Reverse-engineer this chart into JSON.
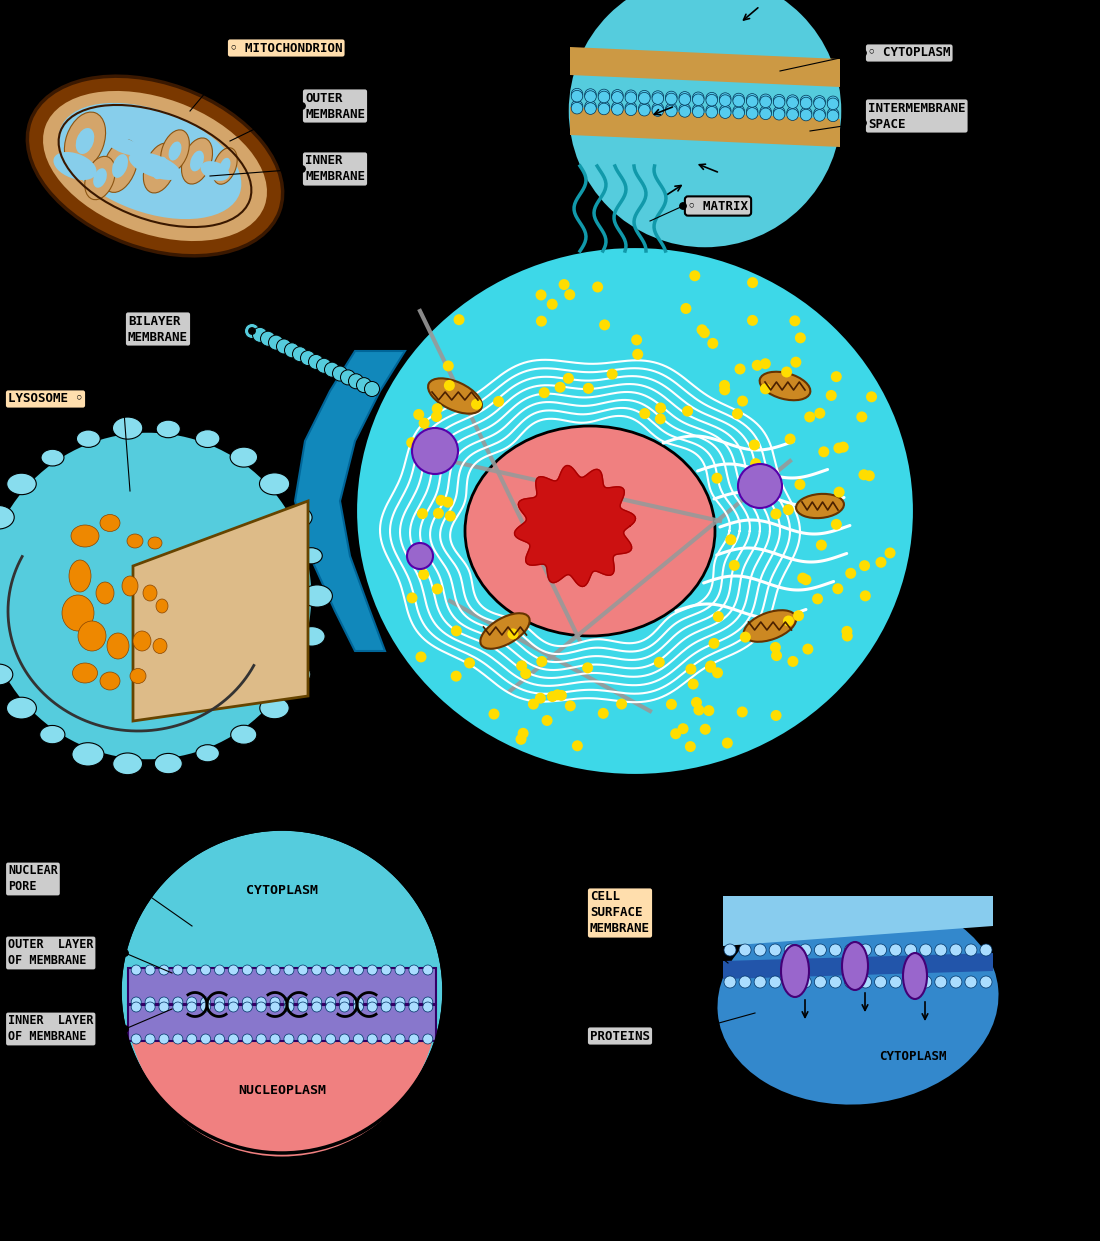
{
  "background_color": "#000000",
  "fig_width": 11.0,
  "fig_height": 12.41,
  "labels": {
    "mitochondrion": "◦ MITOCHONDRION",
    "outer_membrane": "OUTER\nMEMBRANE",
    "inner_membrane": "INNER\nMEMBRANE",
    "cytoplasm_top": "◦ CYTOPLASM",
    "intermembrane_space": "INTERMEMBRANE\nSPACE",
    "matrix": "◦ MATRIX",
    "bilayer_membrane": "BILAYER\nMEMBRANE",
    "lysosome": "LYSOSOME ◦",
    "nuclear_pore": "NUCLEAR\nPORE",
    "outer_layer": "OUTER  LAYER\nOF MEMBRANE",
    "inner_layer": "INNER  LAYER\nOF MEMBRANE",
    "cytoplasm_bottom_left": "CYTOPLASM",
    "nucleoplasm": "NUCLEOPLASM",
    "cell_surface_membrane": "CELL\nSURFACE\nMEMBRANE",
    "proteins": "PROTEINS",
    "cytoplasm_bottom_right": "CYTOPLASM"
  },
  "colors": {
    "background": "#000000",
    "cyan_cell": "#3DD8E8",
    "cyan_light": "#55CCDD",
    "mito_outer_brown": "#8B5513",
    "mito_tan": "#D4A56A",
    "mito_blue": "#87CEEB",
    "orange_mito": "#CC8822",
    "label_peach": "#FFDEAD",
    "label_gray": "#CCCCCC",
    "pink_nucleus": "#F08080",
    "red_nucleolus": "#CC1111",
    "purple": "#9966CC",
    "yellow": "#FFDD00",
    "white": "#FFFFFF",
    "black": "#000000",
    "dark_cyan": "#009999",
    "blue_arm": "#1188BB",
    "orange_blob": "#EE8800",
    "tan_wedge": "#DDBB88"
  }
}
